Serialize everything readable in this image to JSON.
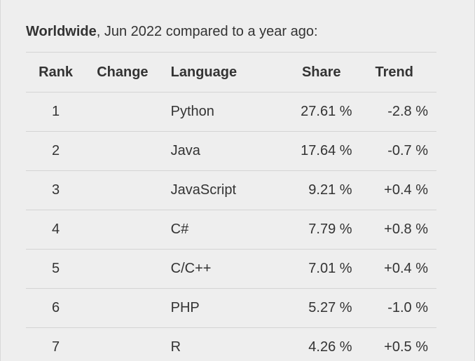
{
  "caption": {
    "bold": "Worldwide",
    "rest": ", Jun 2022 compared to a year ago:"
  },
  "table": {
    "headers": {
      "rank": "Rank",
      "change": "Change",
      "language": "Language",
      "share": "Share",
      "trend": "Trend"
    },
    "rows": [
      {
        "rank": "1",
        "change": "",
        "language": "Python",
        "share": "27.61 %",
        "trend": "-2.8 %"
      },
      {
        "rank": "2",
        "change": "",
        "language": "Java",
        "share": "17.64 %",
        "trend": "-0.7 %"
      },
      {
        "rank": "3",
        "change": "",
        "language": "JavaScript",
        "share": "9.21 %",
        "trend": "+0.4 %"
      },
      {
        "rank": "4",
        "change": "",
        "language": "C#",
        "share": "7.79 %",
        "trend": "+0.8 %"
      },
      {
        "rank": "5",
        "change": "",
        "language": "C/C++",
        "share": "7.01 %",
        "trend": "+0.4 %"
      },
      {
        "rank": "6",
        "change": "",
        "language": "PHP",
        "share": "5.27 %",
        "trend": "-1.0 %"
      },
      {
        "rank": "7",
        "change": "",
        "language": "R",
        "share": "4.26 %",
        "trend": "+0.5 %"
      }
    ]
  },
  "colors": {
    "background": "#eeeeee",
    "text": "#333333",
    "divider": "#d4d4d4"
  }
}
